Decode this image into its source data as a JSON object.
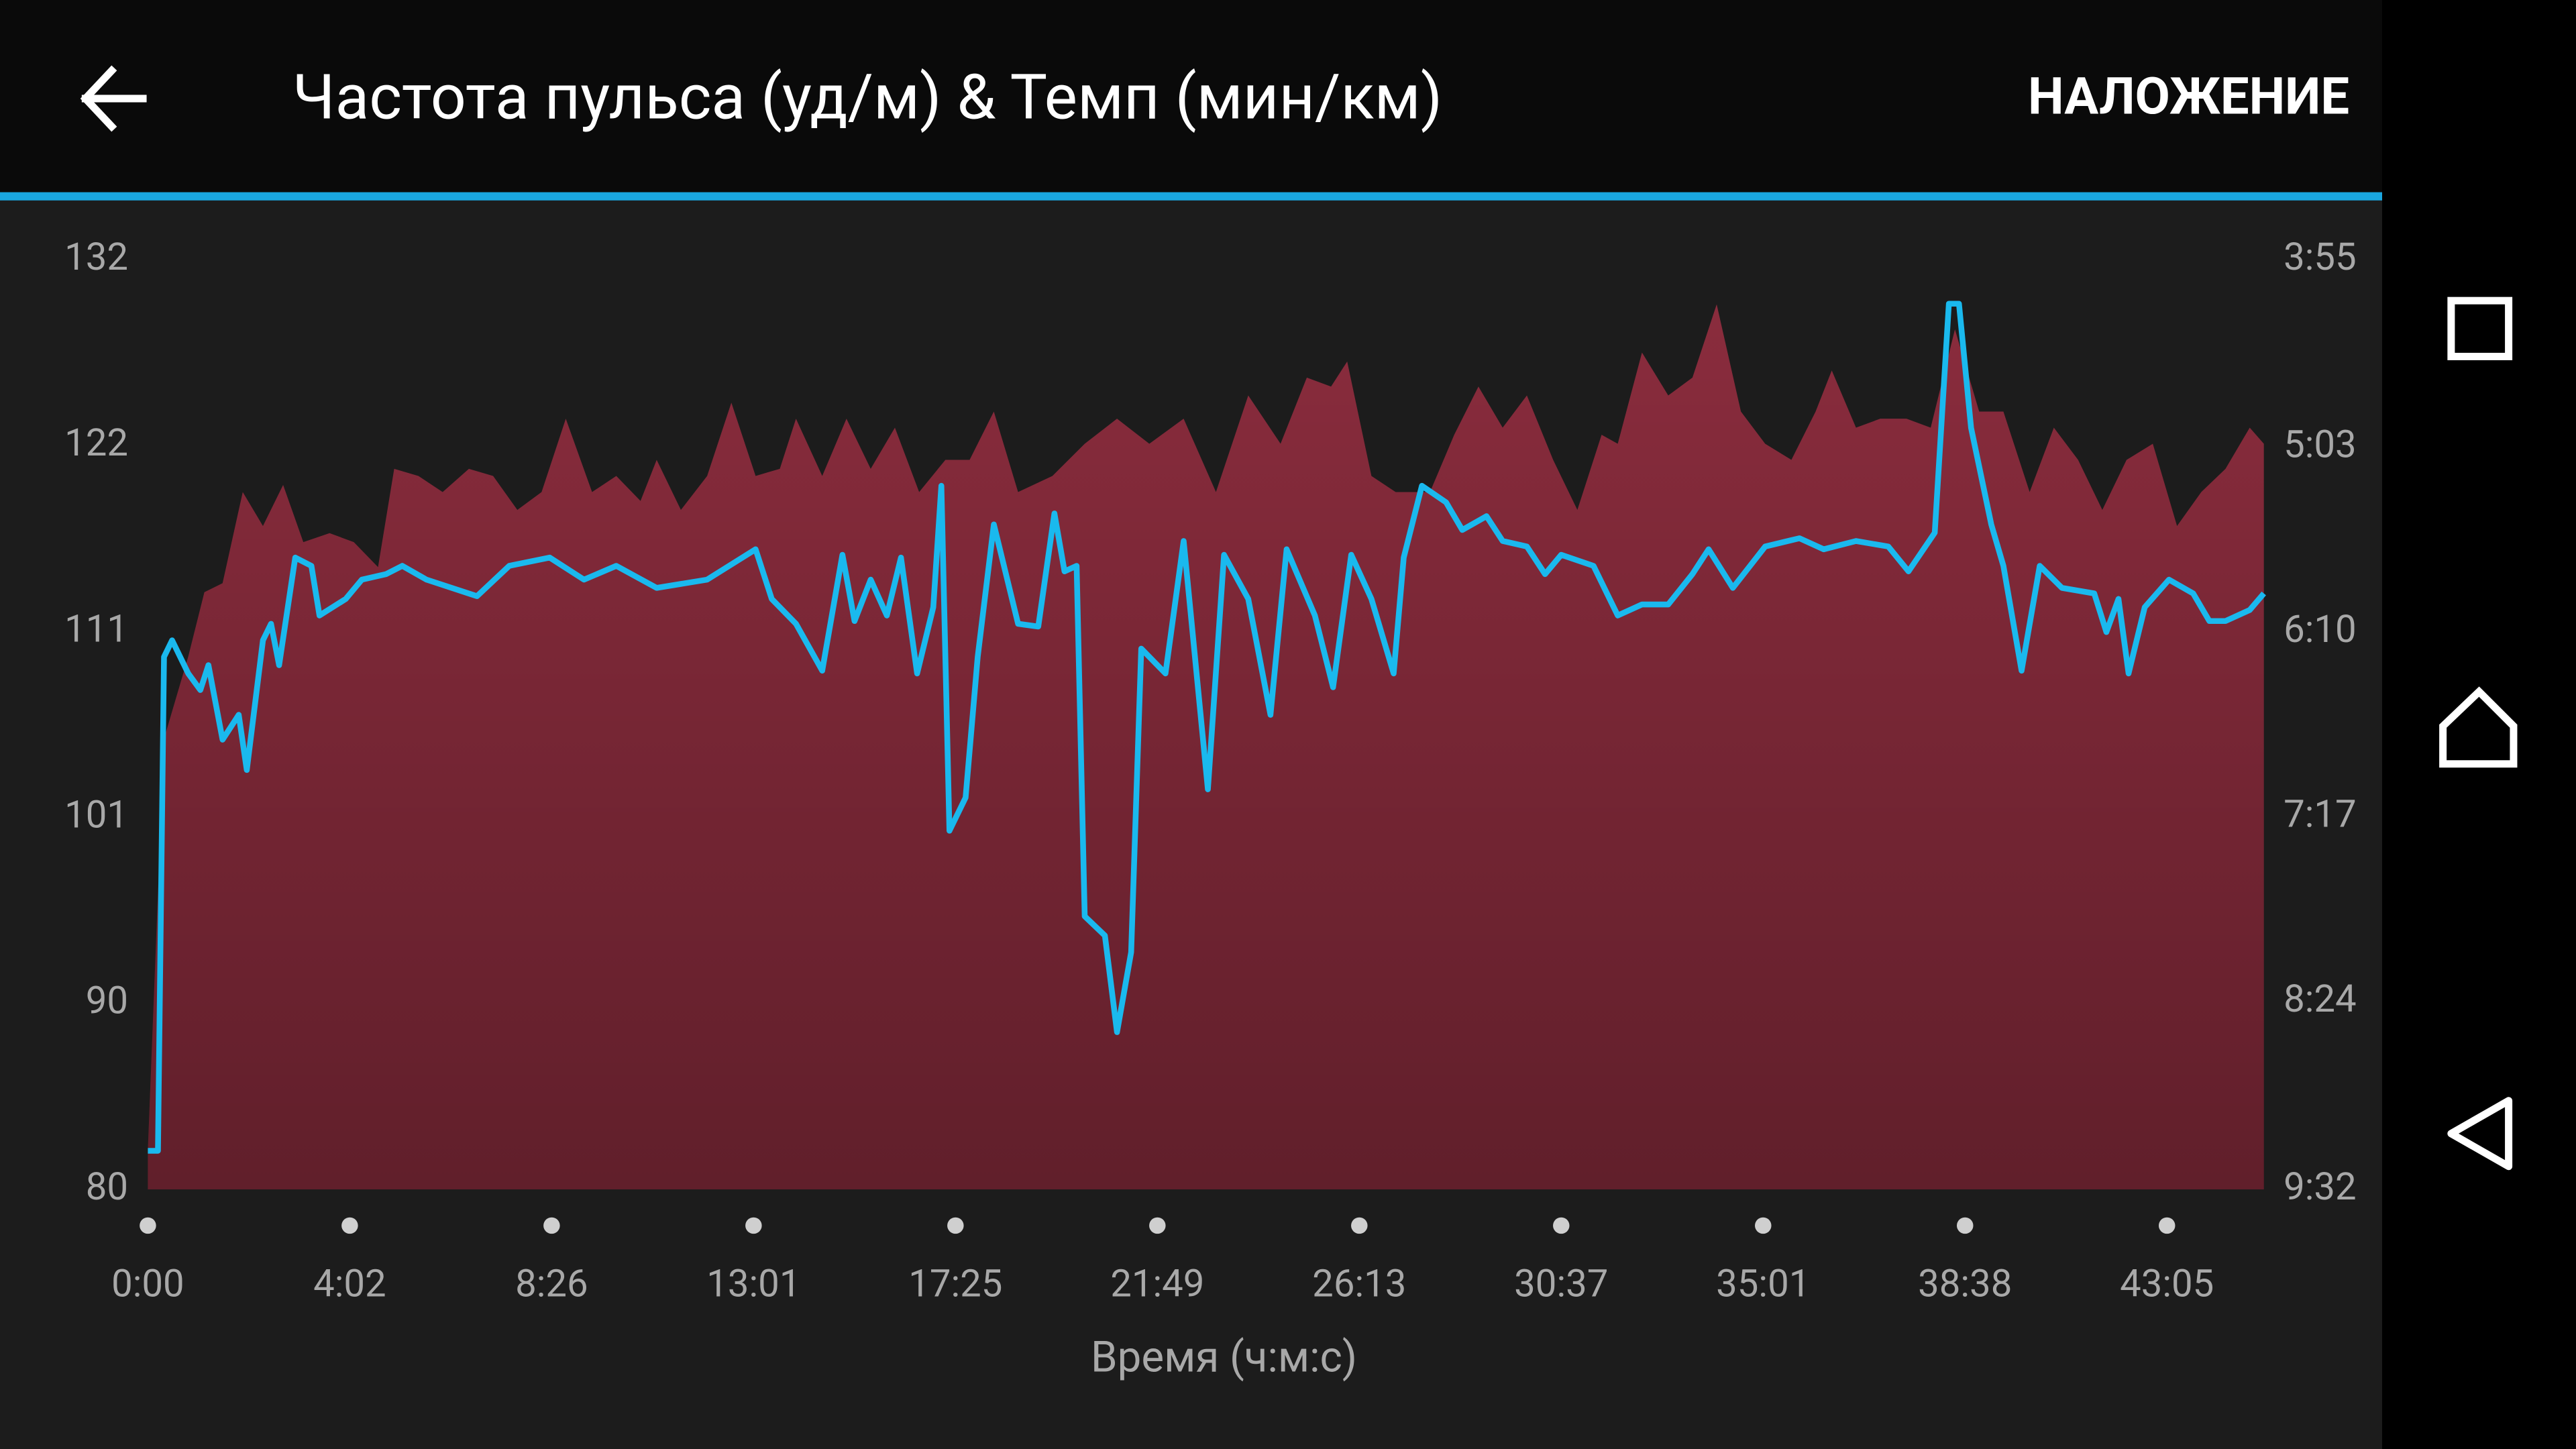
{
  "header": {
    "title": "Частота пульса (уд/м) & Темп (мин/км)",
    "action": "НАЛОЖЕНИЕ"
  },
  "chart_data": {
    "type": "area",
    "xlabel": "Время (ч:м:с)",
    "xlim": [
      0,
      10.48
    ],
    "xticks": [
      {
        "value": 0,
        "label": "0:00"
      },
      {
        "value": 1,
        "label": "4:02"
      },
      {
        "value": 2,
        "label": "8:26"
      },
      {
        "value": 3,
        "label": "13:01"
      },
      {
        "value": 4,
        "label": "17:25"
      },
      {
        "value": 5,
        "label": "21:49"
      },
      {
        "value": 6,
        "label": "26:13"
      },
      {
        "value": 7,
        "label": "30:37"
      },
      {
        "value": 8,
        "label": "35:01"
      },
      {
        "value": 9,
        "label": "38:38"
      },
      {
        "value": 10,
        "label": "43:05"
      }
    ],
    "ylim": [
      80,
      132
    ],
    "yticks": [
      80,
      {
        "value": 90.4,
        "label": "90"
      },
      {
        "value": 100.8,
        "label": "101"
      },
      {
        "value": 111.2,
        "label": "111"
      },
      {
        "value": 121.6,
        "label": "122"
      },
      132
    ],
    "y2lim": [
      572,
      235
    ],
    "y2ticks": [
      {
        "value": 235,
        "label": "3:55"
      },
      {
        "value": 303,
        "label": "5:03"
      },
      {
        "value": 370,
        "label": "6:10"
      },
      {
        "value": 437,
        "label": "7:17"
      },
      {
        "value": 504,
        "label": "8:24"
      },
      {
        "value": 572,
        "label": "9:32"
      }
    ],
    "series": [
      {
        "type": "area",
        "color": "#8a2c3d",
        "x": [
          0,
          0.08,
          0.2,
          0.28,
          0.37,
          0.47,
          0.57,
          0.67,
          0.77,
          0.9,
          1.02,
          1.14,
          1.22,
          1.34,
          1.46,
          1.59,
          1.71,
          1.83,
          1.95,
          2.07,
          2.2,
          2.32,
          2.44,
          2.52,
          2.64,
          2.77,
          2.89,
          3.01,
          3.13,
          3.21,
          3.34,
          3.46,
          3.58,
          3.7,
          3.82,
          3.95,
          4.07,
          4.19,
          4.31,
          4.48,
          4.64,
          4.8,
          4.96,
          5.13,
          5.29,
          5.45,
          5.61,
          5.74,
          5.86,
          5.94,
          6.06,
          6.18,
          6.35,
          6.47,
          6.59,
          6.71,
          6.83,
          6.96,
          7.08,
          7.2,
          7.28,
          7.4,
          7.53,
          7.65,
          7.77,
          7.89,
          8.01,
          8.14,
          8.26,
          8.34,
          8.46,
          8.58,
          8.71,
          8.83,
          8.95,
          9.07,
          9.19,
          9.32,
          9.44,
          9.56,
          9.68,
          9.8,
          9.93,
          10.05,
          10.17,
          10.29,
          10.41,
          10.48
        ],
        "values": [
          82.2,
          105.2,
          109.8,
          113.4,
          113.9,
          119.0,
          117.1,
          119.4,
          116.2,
          116.7,
          116.2,
          114.8,
          120.3,
          119.9,
          119.0,
          120.3,
          119.9,
          118.0,
          119.0,
          123.1,
          119.0,
          119.9,
          118.5,
          120.8,
          118.0,
          119.9,
          124.0,
          119.9,
          120.3,
          123.1,
          119.9,
          123.1,
          120.3,
          122.6,
          119.0,
          120.8,
          120.8,
          123.5,
          119.0,
          119.9,
          121.7,
          123.1,
          121.7,
          123.1,
          119.0,
          124.4,
          121.7,
          125.4,
          124.9,
          126.3,
          119.9,
          119.0,
          119.0,
          122.2,
          124.9,
          122.6,
          124.4,
          120.8,
          118.0,
          122.2,
          121.7,
          126.8,
          124.4,
          125.4,
          129.5,
          123.5,
          121.7,
          120.8,
          123.5,
          125.8,
          122.6,
          123.1,
          123.1,
          122.6,
          128.1,
          123.5,
          123.5,
          119.0,
          122.6,
          120.8,
          118.0,
          120.8,
          121.7,
          117.1,
          119.0,
          120.3,
          122.6,
          121.7
        ]
      },
      {
        "type": "line",
        "axis": "y2",
        "color": "#1ab9ee",
        "x": [
          0,
          0.05,
          0.08,
          0.12,
          0.2,
          0.26,
          0.3,
          0.37,
          0.45,
          0.49,
          0.57,
          0.61,
          0.65,
          0.73,
          0.81,
          0.85,
          0.98,
          1.06,
          1.18,
          1.26,
          1.38,
          1.63,
          1.79,
          1.99,
          2.16,
          2.32,
          2.52,
          2.77,
          3.01,
          3.09,
          3.21,
          3.34,
          3.44,
          3.5,
          3.58,
          3.66,
          3.73,
          3.81,
          3.89,
          3.93,
          3.97,
          4.05,
          4.11,
          4.19,
          4.31,
          4.41,
          4.49,
          4.54,
          4.6,
          4.64,
          4.74,
          4.8,
          4.87,
          4.92,
          5.04,
          5.13,
          5.25,
          5.33,
          5.45,
          5.56,
          5.64,
          5.78,
          5.87,
          5.96,
          6.06,
          6.17,
          6.22,
          6.31,
          6.43,
          6.51,
          6.63,
          6.71,
          6.83,
          6.92,
          7.0,
          7.16,
          7.28,
          7.4,
          7.53,
          7.65,
          7.73,
          7.85,
          8.01,
          8.18,
          8.3,
          8.46,
          8.62,
          8.72,
          8.85,
          8.92,
          8.97,
          9.03,
          9.13,
          9.19,
          9.28,
          9.37,
          9.48,
          9.64,
          9.7,
          9.76,
          9.81,
          9.89,
          10.01,
          10.13,
          10.21,
          10.29,
          10.41,
          10.48
        ],
        "values": [
          558,
          558,
          379,
          373,
          385,
          391,
          382,
          409,
          400,
          420,
          373,
          367,
          382,
          343,
          346,
          364,
          358,
          351,
          349,
          346,
          351,
          357,
          346,
          343,
          351,
          346,
          354,
          351,
          340,
          358,
          367,
          384,
          342,
          366,
          351,
          364,
          343,
          385,
          361,
          317,
          442,
          430,
          379,
          331,
          367,
          368,
          327,
          348,
          346,
          473,
          480,
          515,
          486,
          376,
          385,
          337,
          427,
          342,
          358,
          400,
          340,
          364,
          390,
          342,
          358,
          385,
          343,
          317,
          323,
          333,
          328,
          337,
          339,
          349,
          342,
          346,
          364,
          360,
          360,
          349,
          340,
          354,
          339,
          336,
          340,
          337,
          339,
          348,
          334,
          251,
          251,
          296,
          331,
          346,
          384,
          346,
          354,
          356,
          370,
          358,
          385,
          361,
          351,
          356,
          366,
          366,
          362,
          356
        ]
      }
    ]
  }
}
